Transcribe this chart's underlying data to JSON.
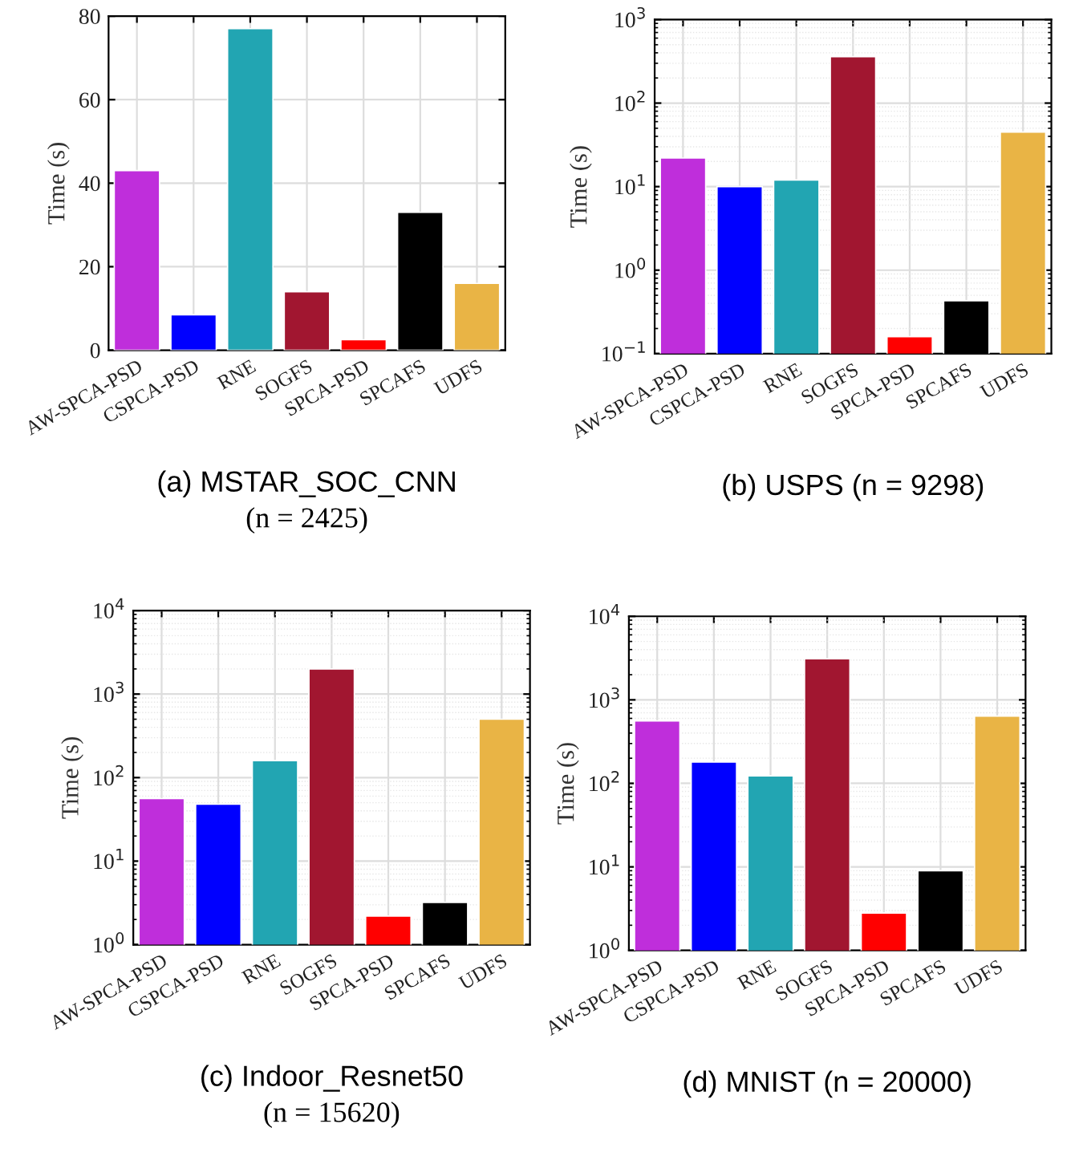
{
  "chart_data": [
    {
      "type": "bar",
      "title": "(a) MSTAR_SOC_CNN",
      "subtitle": "(n = 2425)",
      "ylabel": "Time (s)",
      "categories": [
        "AW-SPCA-PSD",
        "CSPCA-PSD",
        "RNE",
        "SOGFS",
        "SPCA-PSD",
        "SPCAFS",
        "UDFS"
      ],
      "values": [
        43,
        8.5,
        77,
        14,
        2.5,
        33,
        16
      ],
      "colors": [
        "#bf2edb",
        "#0000ff",
        "#22a5b2",
        "#a11630",
        "#ff0000",
        "#000000",
        "#e9b445"
      ],
      "ylim": [
        0,
        80
      ],
      "yticks": [
        0,
        20,
        40,
        60,
        80
      ],
      "grid": true
    },
    {
      "type": "bar",
      "title": "(b) USPS (n = 9298)",
      "ylabel": "Time (s)",
      "categories": [
        "AW-SPCA-PSD",
        "CSPCA-PSD",
        "RNE",
        "SOGFS",
        "SPCA-PSD",
        "SPCAFS",
        "UDFS"
      ],
      "values": [
        22,
        10,
        12,
        360,
        0.16,
        0.43,
        45
      ],
      "colors": [
        "#bf2edb",
        "#0000ff",
        "#22a5b2",
        "#a11630",
        "#ff0000",
        "#000000",
        "#e9b445"
      ],
      "log": "y",
      "ylim": [
        0.1,
        1000
      ],
      "yticks": [
        {
          "value": 0.1,
          "label": "10$^{−1}$"
        },
        {
          "value": 1,
          "label": "10$^{0}$"
        },
        {
          "value": 10,
          "label": "10$^{1}$"
        },
        {
          "value": 100,
          "label": "10$^{2}$"
        },
        {
          "value": 1000,
          "label": "10$^{3}$"
        }
      ],
      "grid": true
    },
    {
      "type": "bar",
      "title": "(c) Indoor_Resnet50",
      "subtitle": "(n = 15620)",
      "ylabel": "Time (s)",
      "categories": [
        "AW-SPCA-PSD",
        "CSPCA-PSD",
        "RNE",
        "SOGFS",
        "SPCA-PSD",
        "SPCAFS",
        "UDFS"
      ],
      "values": [
        56,
        48,
        160,
        2000,
        2.2,
        3.2,
        500
      ],
      "colors": [
        "#bf2edb",
        "#0000ff",
        "#22a5b2",
        "#a11630",
        "#ff0000",
        "#000000",
        "#e9b445"
      ],
      "log": "y",
      "ylim": [
        1,
        10000
      ],
      "yticks": [
        {
          "value": 1,
          "label": "10$^{0}$"
        },
        {
          "value": 10,
          "label": "10$^{1}$"
        },
        {
          "value": 100,
          "label": "10$^{2}$"
        },
        {
          "value": 1000,
          "label": "10$^{3}$"
        },
        {
          "value": 10000,
          "label": "10$^{4}$"
        }
      ],
      "grid": true
    },
    {
      "type": "bar",
      "title": "(d) MNIST (n = 20000)",
      "ylabel": "Time (s)",
      "categories": [
        "AW-SPCA-PSD",
        "CSPCA-PSD",
        "RNE",
        "SOGFS",
        "SPCA-PSD",
        "SPCAFS",
        "UDFS"
      ],
      "values": [
        560,
        180,
        123,
        3100,
        2.8,
        9,
        640
      ],
      "colors": [
        "#bf2edb",
        "#0000ff",
        "#22a5b2",
        "#a11630",
        "#ff0000",
        "#000000",
        "#e9b445"
      ],
      "log": "y",
      "ylim": [
        1,
        10000
      ],
      "yticks": [
        {
          "value": 1,
          "label": "10$^{0}$"
        },
        {
          "value": 10,
          "label": "10$^{1}$"
        },
        {
          "value": 100,
          "label": "10$^{2}$"
        },
        {
          "value": 1000,
          "label": "10$^{3}$"
        },
        {
          "value": 10000,
          "label": "10$^{4}$"
        }
      ],
      "grid": true
    }
  ]
}
